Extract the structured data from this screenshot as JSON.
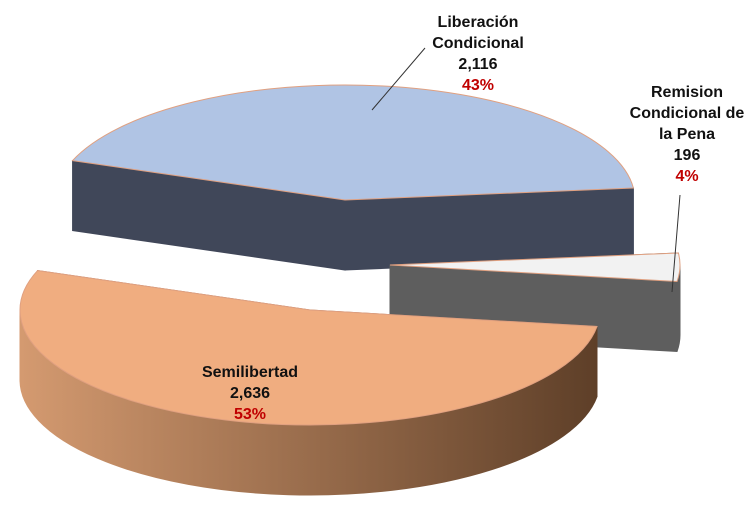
{
  "chart_data": {
    "type": "pie",
    "categories": [
      "Liberación Condicional",
      "Remision Condicional de la Pena",
      "Semilibertad"
    ],
    "values": [
      2116,
      196,
      2636
    ],
    "value_labels": [
      "2,116",
      "196",
      "2,636"
    ],
    "percent_labels": [
      "43%",
      "4%",
      "53%"
    ],
    "colors": [
      "#b0c4e4",
      "#f2f2f2",
      "#f0ad80"
    ],
    "side_colors": [
      "#404759",
      "#5e5e5e",
      "#a8714a"
    ]
  }
}
